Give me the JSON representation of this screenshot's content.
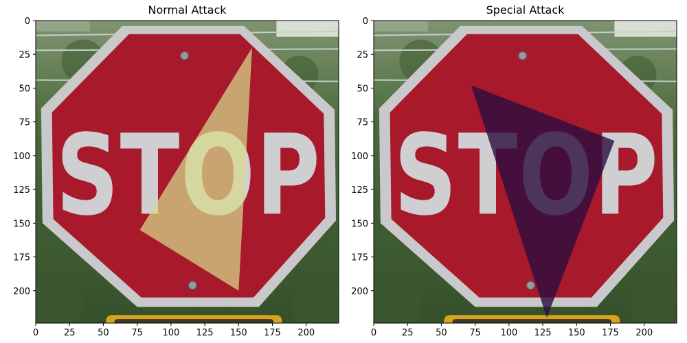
{
  "figure": {
    "panels": [
      {
        "title": "Normal Attack"
      },
      {
        "title": "Special Attack"
      }
    ]
  },
  "colors": {
    "sign_red": "#a8192c",
    "sign_border": "#c9c9cb",
    "letter_fill": "#cfcfd2",
    "foliage": "#3e5a31",
    "sky": "#e6ece4",
    "bar": "#d9a21a",
    "normal_patch": "#d7da8a",
    "special_patch": "#2a0d3e"
  },
  "chart_data": [
    {
      "type": "image",
      "title": "Normal Attack",
      "sign_text": "STOP",
      "xlim": [
        0,
        224
      ],
      "ylim": [
        224,
        0
      ],
      "xticks": [
        0,
        25,
        50,
        75,
        100,
        125,
        150,
        175,
        200
      ],
      "yticks": [
        0,
        25,
        50,
        75,
        100,
        125,
        150,
        175,
        200
      ],
      "patch": {
        "shape": "triangle",
        "vertices": [
          [
            160,
            20
          ],
          [
            77,
            155
          ],
          [
            150,
            200
          ]
        ],
        "color": "#d7da8a",
        "opacity": 0.72
      }
    },
    {
      "type": "image",
      "title": "Special Attack",
      "sign_text": "STOP",
      "xlim": [
        0,
        224
      ],
      "ylim": [
        224,
        0
      ],
      "xticks": [
        0,
        25,
        50,
        75,
        100,
        125,
        150,
        175,
        200
      ],
      "yticks": [
        0,
        25,
        50,
        75,
        100,
        125,
        150,
        175,
        200
      ],
      "patch": {
        "shape": "triangle",
        "vertices": [
          [
            72,
            48
          ],
          [
            178,
            89
          ],
          [
            128,
            220
          ]
        ],
        "color": "#2a0d3e",
        "opacity": 0.8
      }
    }
  ]
}
